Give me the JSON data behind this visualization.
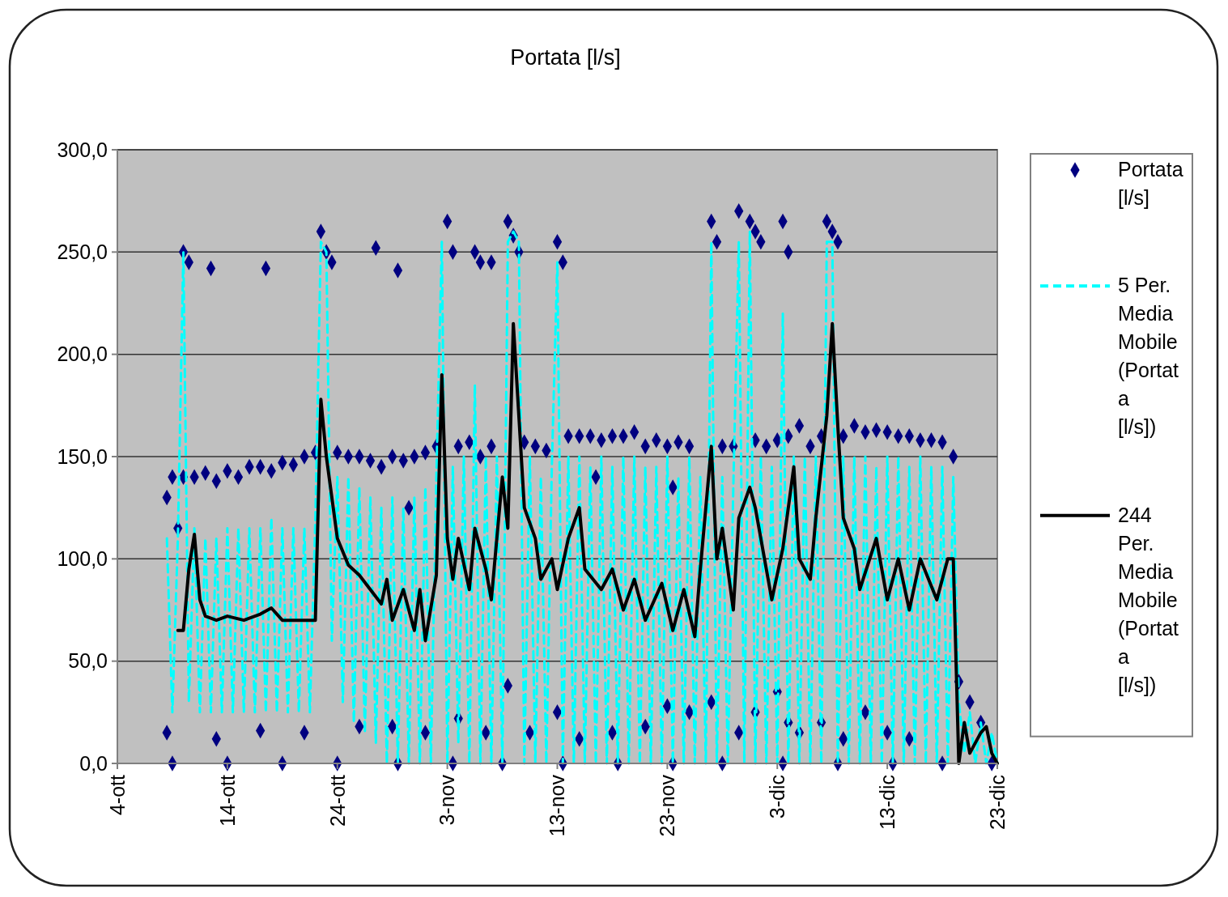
{
  "chart_data": {
    "type": "line",
    "title": "Portata [l/s]",
    "legend": "right",
    "grid": "y",
    "xlim": [
      "--10-04",
      "--12-23"
    ],
    "xticks": [
      {
        "value": "--10-04",
        "label": "4-ott"
      },
      {
        "value": "--10-14",
        "label": "14-ott"
      },
      {
        "value": "--10-24",
        "label": "24-ott"
      },
      {
        "value": "--11-03",
        "label": "3-nov"
      },
      {
        "value": "--11-13",
        "label": "13-nov"
      },
      {
        "value": "--11-23",
        "label": "23-nov"
      },
      {
        "value": "--12-03",
        "label": "3-dic"
      },
      {
        "value": "--12-13",
        "label": "13-dic"
      },
      {
        "value": "--12-23",
        "label": "23-dic"
      }
    ],
    "ylim": [
      0,
      300
    ],
    "yticks": [
      {
        "value": 0,
        "label": "0,0"
      },
      {
        "value": 50,
        "label": "50,0"
      },
      {
        "value": 100,
        "label": "100,0"
      },
      {
        "value": 150,
        "label": "150,0"
      },
      {
        "value": 200,
        "label": "200,0"
      },
      {
        "value": 250,
        "label": "250,0"
      },
      {
        "value": 300,
        "label": "300,0"
      }
    ],
    "series": [
      {
        "name": "Portata [l/s]",
        "type": "scatter",
        "marker": "diamond",
        "color": "#000080",
        "x": [
          "--10-08T12:00",
          "--10-09",
          "--10-09T12:00",
          "--10-10",
          "--10-11",
          "--10-12",
          "--10-13",
          "--10-14",
          "--10-15",
          "--10-16",
          "--10-17",
          "--10-18",
          "--10-19",
          "--10-20",
          "--10-21",
          "--10-22",
          "--10-24",
          "--10-25",
          "--10-26",
          "--10-27",
          "--10-28",
          "--10-29",
          "--10-30",
          "--10-31",
          "--11-01",
          "--11-02",
          "--11-04",
          "--11-05",
          "--11-06",
          "--11-07",
          "--11-10",
          "--11-11",
          "--11-12",
          "--11-14",
          "--11-15",
          "--11-16",
          "--11-17",
          "--11-18",
          "--11-19",
          "--11-20",
          "--11-21",
          "--11-22",
          "--11-23",
          "--11-24",
          "--11-25",
          "--11-28",
          "--11-29",
          "--12-01",
          "--12-02",
          "--12-03",
          "--12-04",
          "--12-05",
          "--12-06",
          "--12-07",
          "--12-09",
          "--12-10",
          "--12-11",
          "--12-12",
          "--12-13",
          "--12-14",
          "--12-15",
          "--12-16",
          "--12-17",
          "--12-18",
          "--12-19",
          "--10-30T12:00",
          "--11-16T12:00",
          "--11-23T12:00",
          "--10-10",
          "--10-10T12:00",
          "--10-12T12:00",
          "--10-17T12:00",
          "--10-22T12:00",
          "--10-23",
          "--10-23T12:00",
          "--10-27T12:00",
          "--10-29T12:00",
          "--11-03",
          "--11-03T12:00",
          "--11-05T12:00",
          "--11-06",
          "--11-07",
          "--11-08T12:00",
          "--11-09",
          "--11-09T12:00",
          "--11-13",
          "--11-13T12:00",
          "--11-27",
          "--11-27T12:00",
          "--11-29T12:00",
          "--11-30T12:00",
          "--12-01",
          "--12-01T12:00",
          "--12-03T12:00",
          "--12-04",
          "--12-07T12:00",
          "--12-08",
          "--12-08T12:00",
          "--10-08T12:00",
          "--10-13",
          "--10-17",
          "--10-21",
          "--10-26",
          "--10-29",
          "--11-01",
          "--11-04",
          "--11-06T12:00",
          "--11-08T12:00",
          "--11-10T12:00",
          "--11-13",
          "--11-15",
          "--11-18",
          "--11-21",
          "--11-23",
          "--11-25",
          "--11-27",
          "--11-29T12:00",
          "--12-01",
          "--12-03",
          "--12-04",
          "--12-05",
          "--12-07",
          "--12-09",
          "--12-11",
          "--12-13",
          "--12-15",
          "--12-19T12:00",
          "--12-20T12:00",
          "--12-21T12:00",
          "--10-09",
          "--10-14",
          "--10-19",
          "--10-24",
          "--10-29T12:00",
          "--11-03T12:00",
          "--11-08",
          "--11-13T12:00",
          "--11-18T12:00",
          "--11-23T12:00",
          "--11-28",
          "--12-03T12:00",
          "--12-08T12:00",
          "--12-13T12:00",
          "--12-18",
          "--12-22T12:00"
        ],
        "values": [
          130,
          140,
          115,
          140,
          140,
          142,
          138,
          143,
          140,
          145,
          145,
          143,
          147,
          146,
          150,
          152,
          152,
          150,
          150,
          148,
          145,
          150,
          148,
          150,
          152,
          155,
          155,
          157,
          150,
          155,
          157,
          155,
          153,
          160,
          160,
          160,
          158,
          160,
          160,
          162,
          155,
          158,
          155,
          157,
          155,
          155,
          155,
          158,
          155,
          158,
          160,
          165,
          155,
          160,
          160,
          165,
          162,
          163,
          162,
          160,
          160,
          158,
          158,
          157,
          150,
          125,
          140,
          135,
          250,
          245,
          242,
          242,
          260,
          250,
          245,
          252,
          241,
          265,
          250,
          250,
          245,
          245,
          265,
          258,
          250,
          255,
          245,
          265,
          255,
          270,
          265,
          260,
          255,
          265,
          250,
          265,
          260,
          255,
          15,
          12,
          16,
          15,
          18,
          18,
          15,
          22,
          15,
          38,
          15,
          25,
          12,
          15,
          18,
          28,
          25,
          30,
          15,
          25,
          35,
          20,
          15,
          20,
          12,
          25,
          15,
          12,
          40,
          30,
          20,
          0,
          0,
          0,
          0,
          0,
          0,
          0,
          0,
          0,
          0,
          0,
          0,
          0,
          0,
          0,
          0
        ]
      },
      {
        "name": "5 Per. Media Mobile (Portata [l/s])",
        "line_style": "dashed",
        "color": "#00ffff",
        "x": [
          "--10-08T12:00",
          "--10-09",
          "--10-09T12:00",
          "--10-10",
          "--10-10T12:00",
          "--10-11",
          "--10-11T12:00",
          "--10-12",
          "--10-12T12:00",
          "--10-13",
          "--10-13T12:00",
          "--10-14",
          "--10-14T12:00",
          "--10-15",
          "--10-15T12:00",
          "--10-16",
          "--10-16T12:00",
          "--10-17",
          "--10-17T12:00",
          "--10-18",
          "--10-18T12:00",
          "--10-19",
          "--10-19T12:00",
          "--10-20",
          "--10-20T12:00",
          "--10-21",
          "--10-21T12:00",
          "--10-22",
          "--10-22T12:00",
          "--10-23",
          "--10-23T12:00",
          "--10-24",
          "--10-24T12:00",
          "--10-25",
          "--10-25T12:00",
          "--10-26",
          "--10-26T12:00",
          "--10-27",
          "--10-27T12:00",
          "--10-28",
          "--10-28T12:00",
          "--10-29",
          "--10-29T12:00",
          "--10-30",
          "--10-30T12:00",
          "--10-31",
          "--10-31T12:00",
          "--11-01",
          "--11-01T12:00",
          "--11-02",
          "--11-02T12:00",
          "--11-03",
          "--11-03T12:00",
          "--11-04",
          "--11-04T12:00",
          "--11-05",
          "--11-05T12:00",
          "--11-06",
          "--11-06T12:00",
          "--11-07",
          "--11-07T12:00",
          "--11-08",
          "--11-08T12:00",
          "--11-09",
          "--11-09T12:00",
          "--11-10",
          "--11-10T12:00",
          "--11-11",
          "--11-11T12:00",
          "--11-12",
          "--11-12T12:00",
          "--11-13",
          "--11-13T12:00",
          "--11-14",
          "--11-14T12:00",
          "--11-15",
          "--11-15T12:00",
          "--11-16",
          "--11-16T12:00",
          "--11-17",
          "--11-17T12:00",
          "--11-18",
          "--11-18T12:00",
          "--11-19",
          "--11-19T12:00",
          "--11-20",
          "--11-20T12:00",
          "--11-21",
          "--11-21T12:00",
          "--11-22",
          "--11-22T12:00",
          "--11-23",
          "--11-23T12:00",
          "--11-24",
          "--11-24T12:00",
          "--11-25",
          "--11-25T12:00",
          "--11-26",
          "--11-26T12:00",
          "--11-27",
          "--11-27T12:00",
          "--11-28",
          "--11-28T12:00",
          "--11-29",
          "--11-29T12:00",
          "--11-30",
          "--11-30T12:00",
          "--12-01",
          "--12-01T12:00",
          "--12-02",
          "--12-02T12:00",
          "--12-03",
          "--12-03T12:00",
          "--12-04",
          "--12-04T12:00",
          "--12-05",
          "--12-05T12:00",
          "--12-06",
          "--12-06T12:00",
          "--12-07",
          "--12-07T12:00",
          "--12-08",
          "--12-08T12:00",
          "--12-09",
          "--12-09T12:00",
          "--12-10",
          "--12-10T12:00",
          "--12-11",
          "--12-11T12:00",
          "--12-12",
          "--12-12T12:00",
          "--12-13",
          "--12-13T12:00",
          "--12-14",
          "--12-14T12:00",
          "--12-15",
          "--12-15T12:00",
          "--12-16",
          "--12-16T12:00",
          "--12-17",
          "--12-17T12:00",
          "--12-18",
          "--12-18T12:00",
          "--12-19",
          "--12-19T12:00",
          "--12-20",
          "--12-20T12:00",
          "--12-21",
          "--12-21T12:00",
          "--12-22",
          "--12-22T12:00",
          "--12-23"
        ],
        "values": [
          110,
          25,
          110,
          250,
          30,
          115,
          25,
          110,
          25,
          110,
          25,
          115,
          25,
          115,
          25,
          115,
          25,
          115,
          25,
          120,
          25,
          115,
          25,
          115,
          25,
          115,
          25,
          120,
          255,
          250,
          60,
          140,
          30,
          140,
          20,
          135,
          15,
          130,
          10,
          125,
          0,
          130,
          0,
          125,
          0,
          130,
          0,
          135,
          0,
          140,
          255,
          0,
          145,
          10,
          150,
          0,
          185,
          0,
          150,
          0,
          150,
          0,
          255,
          260,
          255,
          0,
          150,
          0,
          140,
          0,
          145,
          245,
          0,
          150,
          0,
          150,
          0,
          145,
          0,
          150,
          0,
          145,
          0,
          150,
          0,
          150,
          0,
          145,
          0,
          145,
          0,
          150,
          0,
          140,
          0,
          150,
          0,
          140,
          0,
          255,
          0,
          140,
          0,
          135,
          255,
          0,
          260,
          0,
          150,
          0,
          145,
          0,
          220,
          0,
          150,
          0,
          150,
          0,
          150,
          0,
          255,
          255,
          0,
          150,
          0,
          150,
          0,
          150,
          0,
          145,
          0,
          150,
          0,
          150,
          0,
          145,
          0,
          150,
          0,
          145,
          0,
          145,
          0,
          140,
          30,
          5,
          25,
          0,
          20,
          0,
          15,
          0
        ]
      },
      {
        "name": "244 Per. Media Mobile (Portata [l/s])",
        "line_style": "solid",
        "color": "#000000",
        "x": [
          "--10-09T12:00",
          "--10-10",
          "--10-10T12:00",
          "--10-11",
          "--10-11T12:00",
          "--10-12",
          "--10-13",
          "--10-14",
          "--10-15T12:00",
          "--10-17",
          "--10-18",
          "--10-19",
          "--10-20",
          "--10-22",
          "--10-22T12:00",
          "--10-23",
          "--10-24",
          "--10-25",
          "--10-26",
          "--10-27",
          "--10-28",
          "--10-28T12:00",
          "--10-29",
          "--10-30",
          "--10-31",
          "--10-31T12:00",
          "--11-01",
          "--11-02",
          "--11-02T12:00",
          "--11-03",
          "--11-03T12:00",
          "--11-04",
          "--11-05",
          "--11-05T12:00",
          "--11-06T12:00",
          "--11-07",
          "--11-08",
          "--11-08T12:00",
          "--11-09",
          "--11-09T12:00",
          "--11-10",
          "--11-11",
          "--11-11T12:00",
          "--11-12T12:00",
          "--11-13",
          "--11-14",
          "--11-15",
          "--11-15T12:00",
          "--11-17",
          "--11-18",
          "--11-19",
          "--11-20",
          "--11-21",
          "--11-22T12:00",
          "--11-23T12:00",
          "--11-24T12:00",
          "--11-25T12:00",
          "--11-26",
          "--11-27",
          "--11-27T12:00",
          "--11-28",
          "--11-29",
          "--11-29T12:00",
          "--11-30T12:00",
          "--12-01",
          "--12-02",
          "--12-02T12:00",
          "--12-03T12:00",
          "--12-04T12:00",
          "--12-05",
          "--12-06",
          "--12-06T12:00",
          "--12-07T12:00",
          "--12-08",
          "--12-08T12:00",
          "--12-09",
          "--12-10",
          "--12-10T12:00",
          "--12-12",
          "--12-13",
          "--12-14",
          "--12-15",
          "--12-16",
          "--12-17T12:00",
          "--12-18T12:00",
          "--12-19",
          "--12-19T12:00",
          "--12-20",
          "--12-20T12:00",
          "--12-21T12:00",
          "--12-22",
          "--12-22T12:00",
          "--12-23"
        ],
        "values": [
          65,
          65,
          95,
          112,
          80,
          72,
          70,
          72,
          70,
          73,
          76,
          70,
          70,
          70,
          178,
          150,
          110,
          97,
          92,
          85,
          78,
          90,
          70,
          85,
          65,
          85,
          60,
          92,
          190,
          110,
          90,
          110,
          85,
          115,
          95,
          80,
          140,
          115,
          215,
          170,
          125,
          110,
          90,
          100,
          85,
          110,
          125,
          95,
          85,
          95,
          75,
          90,
          70,
          88,
          65,
          85,
          62,
          95,
          155,
          100,
          115,
          75,
          120,
          135,
          125,
          95,
          80,
          105,
          145,
          100,
          90,
          120,
          170,
          215,
          165,
          120,
          105,
          85,
          110,
          80,
          100,
          75,
          100,
          80,
          100,
          100,
          0,
          20,
          5,
          15,
          18,
          5,
          0
        ]
      }
    ]
  }
}
